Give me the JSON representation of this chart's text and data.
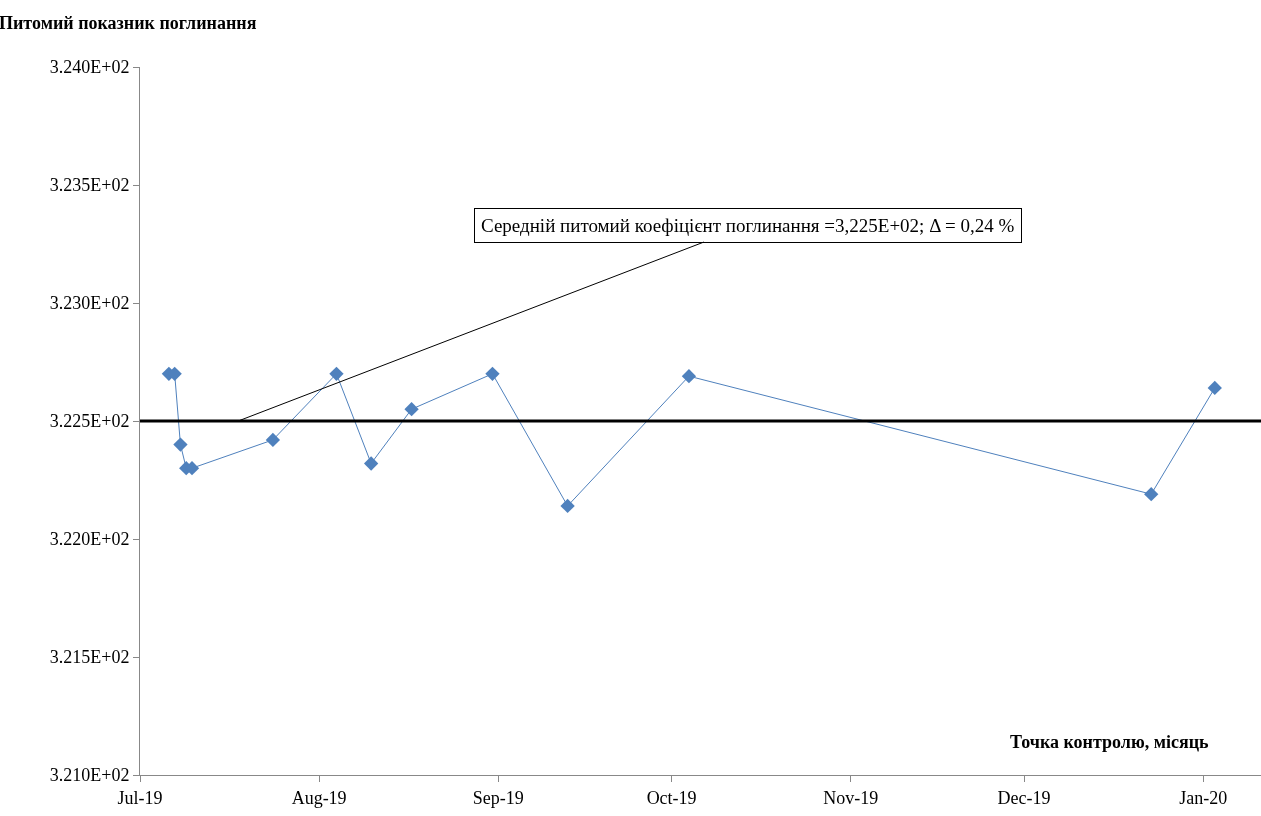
{
  "chart_data": {
    "type": "line",
    "ylabel": "Питомий показник поглинання",
    "xlabel": "Точка контролю, місяць",
    "x": [
      "2019-07-06",
      "2019-07-07",
      "2019-07-08",
      "2019-07-09",
      "2019-07-10",
      "2019-07-24",
      "2019-08-04",
      "2019-08-10",
      "2019-08-17",
      "2019-08-31",
      "2019-09-13",
      "2019-10-04",
      "2019-12-23",
      "2020-01-03"
    ],
    "series": [
      {
        "color": "#4f81bd",
        "values": [
          322.7,
          322.7,
          322.4,
          322.3,
          322.3,
          322.42,
          322.7,
          322.32,
          322.55,
          322.7,
          322.14,
          322.69,
          322.19,
          322.64
        ]
      }
    ],
    "marker": "diamond",
    "line_style": "solid",
    "grid": false,
    "xlim": [
      "2019-07-01",
      "2020-01-11"
    ],
    "xticks": [
      {
        "value": "2019-07-01",
        "label": "Jul-19"
      },
      {
        "value": "2019-08-01",
        "label": "Aug-19"
      },
      {
        "value": "2019-09-01",
        "label": "Sep-19"
      },
      {
        "value": "2019-10-01",
        "label": "Oct-19"
      },
      {
        "value": "2019-11-01",
        "label": "Nov-19"
      },
      {
        "value": "2019-12-01",
        "label": "Dec-19"
      },
      {
        "value": "2020-01-01",
        "label": "Jan-20"
      }
    ],
    "ylim": [
      321.0,
      324.0
    ],
    "yticks": [
      {
        "value": 321.0,
        "label": "3.210E+02"
      },
      {
        "value": 321.5,
        "label": "3.215E+02"
      },
      {
        "value": 322.0,
        "label": "3.220E+02"
      },
      {
        "value": 322.5,
        "label": "3.225E+02"
      },
      {
        "value": 323.0,
        "label": "3.230E+02"
      },
      {
        "value": 323.5,
        "label": "3.235E+02"
      },
      {
        "value": 324.0,
        "label": "3.240E+02"
      }
    ],
    "ref_lines": [
      {
        "axis": "y",
        "value": 322.5,
        "color": "#000000"
      }
    ],
    "annotations": [
      {
        "text": "Середній питомий коефіцієнт поглинання =3,225E+02; Δ = 0,24 %",
        "x": "2019-07-18",
        "y": 322.5
      }
    ]
  }
}
